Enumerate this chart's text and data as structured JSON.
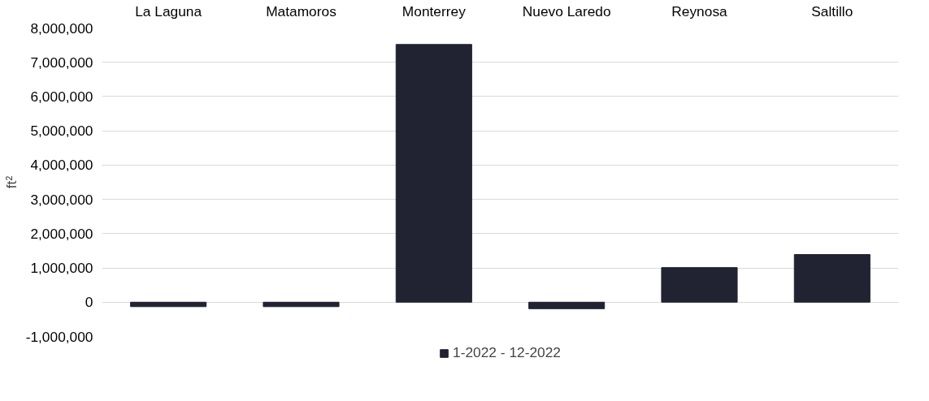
{
  "chart_data": {
    "type": "bar",
    "ylabel": "ft²",
    "categories": [
      "La Laguna",
      "Matamoros",
      "Monterrey",
      "Nuevo Laredo",
      "Reynosa",
      "Saltillo"
    ],
    "series": [
      {
        "name": "1-2022 - 12-2022",
        "color": "#212332",
        "values": [
          -130000,
          -130000,
          7520000,
          -190000,
          1010000,
          1390000
        ]
      }
    ],
    "ylim": [
      -1000000,
      8000000
    ],
    "yticks": [
      {
        "value": -1000000,
        "label": "-1,000,000"
      },
      0,
      {
        "value": 1000000,
        "label": "1,000,000"
      },
      {
        "value": 2000000,
        "label": "2,000,000"
      },
      {
        "value": 3000000,
        "label": "3,000,000"
      },
      {
        "value": 4000000,
        "label": "4,000,000"
      },
      {
        "value": 5000000,
        "label": "5,000,000"
      },
      {
        "value": 6000000,
        "label": "6,000,000"
      },
      {
        "value": 7000000,
        "label": "7,000,000"
      },
      {
        "value": 8000000,
        "label": "8,000,000"
      }
    ],
    "grid": "y",
    "legend": "bottom"
  }
}
